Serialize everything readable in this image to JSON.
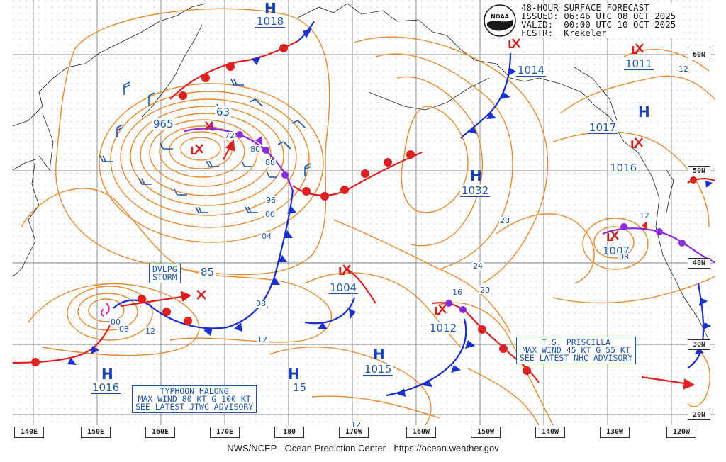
{
  "header": {
    "line1": "48-HOUR SURFACE FORECAST",
    "line2": "ISSUED: 06:46 UTC 08 OCT 2025",
    "line3": "VALID:  00:00 UTC 10 OCT 2025",
    "line4": "FCSTR:  Krekeler"
  },
  "logo": {
    "text": "NOAA"
  },
  "footer": "NWS/NCEP - Ocean Prediction Center - https://ocean.weather.gov",
  "longitudes": [
    "140E",
    "150E",
    "160E",
    "170E",
    "180",
    "170W",
    "160W",
    "150W",
    "140W",
    "130W",
    "120W"
  ],
  "latitudes": [
    "60N",
    "50N",
    "40N",
    "30N",
    "20N"
  ],
  "highs": [
    {
      "letter": "H",
      "value": "1018"
    },
    {
      "letter": "H",
      "value": "1032"
    },
    {
      "letter": "H",
      "value": "1017"
    },
    {
      "letter": "H",
      "value": "1016"
    },
    {
      "letter": "H",
      "value": "15"
    },
    {
      "letter": "H",
      "value": "1015"
    }
  ],
  "lows": [
    {
      "value": "965"
    },
    {
      "value": "1014"
    },
    {
      "value": "1011"
    },
    {
      "value": "1016"
    },
    {
      "value": "1007"
    },
    {
      "value": "1004"
    },
    {
      "value": "1012"
    },
    {
      "value": "85"
    }
  ],
  "isobar_labels": [
    "63",
    "72",
    "80",
    "88",
    "96",
    "00",
    "04",
    "08",
    "12",
    "16",
    "20",
    "24",
    "28",
    "12",
    "08",
    "00",
    "08",
    "12",
    "12",
    "08"
  ],
  "storm_box": {
    "line1": "DVLPG",
    "line2": "STORM"
  },
  "typhoon_box": {
    "line1": "TYPHOON HALONG",
    "line2": "MAX WIND 80 KT G 100 KT",
    "line3": "SEE LATEST JTWC ADVISORY"
  },
  "priscilla_box": {
    "line1": "T.S. PRISCILLA",
    "line2": "MAX WIND 45 KT G 55 KT",
    "line3": "SEE LATEST NHC ADVISORY"
  },
  "colors": {
    "isobar": "#e8892e",
    "warm_front": "#e02020",
    "cold_front": "#1a2fd0",
    "occluded": "#8a2be2",
    "label": "#1f57a8",
    "low": "#d42020",
    "grid": "#9a9a9a"
  }
}
